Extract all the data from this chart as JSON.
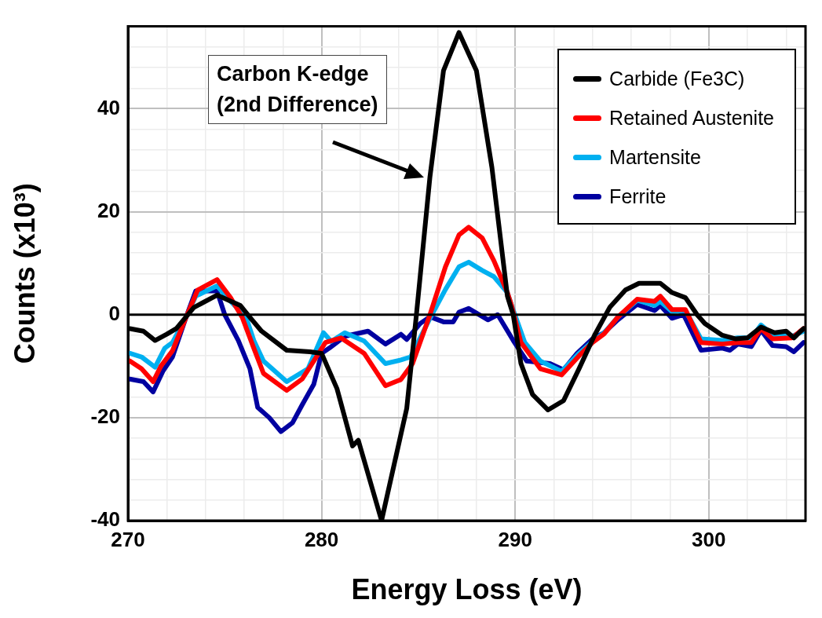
{
  "chart_data": {
    "type": "line",
    "xlabel": "Energy Loss (eV)",
    "ylabel": "Counts (x10³)",
    "annotations": [
      "Carbon K-edge\n(2nd Difference)"
    ],
    "xlim": [
      270,
      305
    ],
    "xticks": [
      270,
      {
        "value": 272,
        "label": null
      },
      {
        "value": 274,
        "label": null
      },
      {
        "value": 276,
        "label": null
      },
      {
        "value": 278,
        "label": null
      },
      280,
      {
        "value": 282,
        "label": null
      },
      {
        "value": 284,
        "label": null
      },
      {
        "value": 286,
        "label": null
      },
      {
        "value": 288,
        "label": null
      },
      290,
      {
        "value": 292,
        "label": null
      },
      {
        "value": 294,
        "label": null
      },
      {
        "value": 296,
        "label": null
      },
      {
        "value": 298,
        "label": null
      },
      300,
      {
        "value": 302,
        "label": null
      },
      {
        "value": 304,
        "label": null
      }
    ],
    "ylim": [
      -40,
      56
    ],
    "yticks": [
      -40,
      {
        "value": -36,
        "label": null
      },
      {
        "value": -32,
        "label": null
      },
      {
        "value": -28,
        "label": null
      },
      {
        "value": -24,
        "label": null
      },
      -20,
      {
        "value": -16,
        "label": null
      },
      {
        "value": -12,
        "label": null
      },
      {
        "value": -8,
        "label": null
      },
      {
        "value": -4,
        "label": null
      },
      0,
      {
        "value": 4,
        "label": null
      },
      {
        "value": 8,
        "label": null
      },
      {
        "value": 12,
        "label": null
      },
      {
        "value": 16,
        "label": null
      },
      20,
      {
        "value": 24,
        "label": null
      },
      {
        "value": 28,
        "label": null
      },
      {
        "value": 32,
        "label": null
      },
      {
        "value": 36,
        "label": null
      },
      40,
      {
        "value": 44,
        "label": null
      },
      {
        "value": 48,
        "label": null
      },
      {
        "value": 52,
        "label": null
      }
    ],
    "grid": true,
    "legend": "top right",
    "marker": "none",
    "line_style": "solid",
    "ref_lines": [
      {
        "axis": "y",
        "value": 0,
        "color": "#000000"
      }
    ],
    "series": [
      {
        "name": "Carbide (Fe3C)",
        "color": "#000000",
        "x": [
          270.1,
          270.8,
          271.4,
          272,
          272.5,
          273.4,
          274.6,
          275.8,
          276.3,
          276.9,
          278.2,
          279.4,
          280,
          280.8,
          281.6,
          281.9,
          283.1,
          284.4,
          284.9,
          285.6,
          286.3,
          287.1,
          288,
          288.8,
          289.6,
          289.9,
          290.3,
          290.9,
          291.7,
          292.5,
          293.3,
          294.1,
          294.9,
          295.7,
          296.4,
          297.5,
          298.1,
          298.8,
          299.4,
          299.8,
          300.7,
          301.4,
          302,
          302.7,
          303.4,
          304,
          304.4,
          304.9
        ],
        "values": [
          -2.7,
          -3.2,
          -5,
          -3.8,
          -2.7,
          1.4,
          3.8,
          1.8,
          -0.5,
          -3.2,
          -6.9,
          -7.2,
          -7.5,
          -14.4,
          -25.5,
          -24.4,
          -40,
          -18.2,
          0,
          26.8,
          47.4,
          54.8,
          47.4,
          28.6,
          3.6,
          0,
          -9.5,
          -15.5,
          -18.5,
          -16.7,
          -10.5,
          -4,
          1.5,
          4.8,
          6.1,
          6.1,
          4.3,
          3.3,
          0,
          -1.7,
          -4,
          -4.7,
          -4.5,
          -2.4,
          -3.5,
          -3.2,
          -4.5,
          -2.7
        ]
      },
      {
        "name": "Retained Austenite",
        "color": "#ff0000",
        "x": [
          270.1,
          270.7,
          271.3,
          271.7,
          272.3,
          273,
          273.6,
          274.6,
          275.3,
          275.9,
          276.5,
          277,
          278.2,
          279,
          279.7,
          280.2,
          281,
          282.2,
          283.3,
          284.1,
          284.7,
          285.6,
          286.4,
          287.1,
          287.6,
          288.3,
          288.9,
          289.6,
          289.8,
          290.3,
          291.3,
          292.4,
          293.3,
          294,
          294.6,
          295.3,
          296.3,
          297.2,
          297.5,
          298.1,
          298.8,
          299.6,
          300.7,
          301.5,
          302.2,
          302.7,
          303.3,
          304.3,
          304.9
        ],
        "values": [
          -9,
          -10.5,
          -13,
          -10,
          -7,
          -0.5,
          4.8,
          6.8,
          3.3,
          -0.5,
          -6.5,
          -11.4,
          -14.7,
          -12.5,
          -8.4,
          -5.4,
          -4.5,
          -7.5,
          -13.8,
          -12.6,
          -9.5,
          0,
          9.3,
          15.5,
          17,
          14.9,
          10.5,
          4.3,
          2,
          -5.4,
          -10.5,
          -11.7,
          -8,
          -5.4,
          -3.7,
          -0.5,
          3,
          2.6,
          3.6,
          1,
          1,
          -5.4,
          -5.7,
          -5.4,
          -5.4,
          -2.7,
          -4.7,
          -4.5,
          -2.7
        ]
      },
      {
        "name": "Martensite",
        "color": "#00b0f0",
        "x": [
          270.1,
          270.7,
          271.4,
          271.9,
          272.3,
          273,
          273.5,
          274.6,
          275.3,
          276.1,
          276.5,
          277,
          278.2,
          279.3,
          280.1,
          280.5,
          281.2,
          282.2,
          283.3,
          284.1,
          284.6,
          285.6,
          286.4,
          287.1,
          287.6,
          288.3,
          288.9,
          289.6,
          289.8,
          290.5,
          291.3,
          292.4,
          293.3,
          294,
          294.6,
          295.3,
          296.3,
          297.2,
          297.5,
          298.1,
          298.8,
          299.6,
          300.7,
          301.5,
          302.2,
          302.7,
          303.3,
          304.3,
          304.9
        ],
        "values": [
          -7.5,
          -8.2,
          -10.2,
          -6.5,
          -5.4,
          -0.5,
          3.6,
          5.6,
          2.6,
          -0.5,
          -5,
          -9,
          -13,
          -10.5,
          -3.5,
          -5.2,
          -3.5,
          -5.1,
          -9.5,
          -8.8,
          -8.2,
          -0.7,
          4.9,
          9.3,
          10.2,
          8.6,
          7.4,
          4.3,
          2,
          -5.4,
          -9,
          -11,
          -7.5,
          -5.2,
          -3.5,
          -0.5,
          2.8,
          1.8,
          2.6,
          0.6,
          0.8,
          -4.7,
          -5,
          -4.5,
          -4.5,
          -2,
          -3.9,
          -4.2,
          -3.2
        ]
      },
      {
        "name": "Ferrite",
        "color": "#0000a0",
        "x": [
          270.1,
          270.8,
          271.3,
          271.8,
          272.3,
          273,
          273.5,
          274.6,
          275,
          275.7,
          276.3,
          276.7,
          277.3,
          277.9,
          278.5,
          279,
          279.6,
          280,
          280.4,
          281.2,
          282.4,
          283.3,
          284.1,
          284.4,
          285.1,
          285.6,
          286.3,
          286.8,
          287.1,
          287.6,
          288.6,
          289.1,
          289.9,
          290.6,
          291.8,
          292.5,
          293.2,
          294,
          294.6,
          295.3,
          296.3,
          297.2,
          297.5,
          298.1,
          298.7,
          299.6,
          300.7,
          301.1,
          301.5,
          302.2,
          302.7,
          303.3,
          304,
          304.4,
          304.9
        ],
        "values": [
          -12.5,
          -13,
          -15,
          -11,
          -8.2,
          -0.5,
          4.6,
          4.6,
          0,
          -5,
          -10.5,
          -18,
          -20,
          -22.7,
          -21,
          -17.5,
          -13.5,
          -7.5,
          -6.5,
          -4.2,
          -3.2,
          -5.7,
          -3.8,
          -4.8,
          -1.7,
          -0.4,
          -1.4,
          -1.4,
          0.5,
          1.2,
          -1,
          0,
          -5,
          -9,
          -9.5,
          -10.7,
          -7.5,
          -4.7,
          -3.5,
          -1,
          2,
          0.8,
          1.8,
          -0.7,
          0,
          -6.9,
          -6.5,
          -6.9,
          -5.7,
          -6.2,
          -3,
          -6,
          -6.2,
          -7.2,
          -5.4
        ]
      }
    ]
  }
}
